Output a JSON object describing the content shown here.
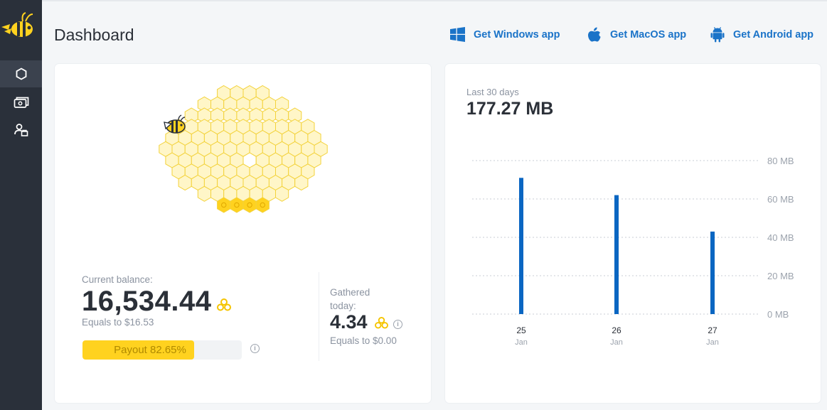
{
  "page": {
    "title": "Dashboard"
  },
  "sidebar": {
    "items": [
      {
        "name": "dashboard",
        "icon": "hexagon-icon",
        "active": true
      },
      {
        "name": "wallet",
        "icon": "wallet-icon",
        "active": false
      },
      {
        "name": "referrals",
        "icon": "users-icon",
        "active": false
      }
    ]
  },
  "header": {
    "apps": [
      {
        "label": "Get Windows app",
        "icon": "windows-icon"
      },
      {
        "label": "Get MacOS app",
        "icon": "apple-icon"
      },
      {
        "label": "Get Android app",
        "icon": "android-icon"
      }
    ]
  },
  "balance": {
    "label": "Current balance:",
    "value": "16,534.44",
    "equals": "Equals to $16.53",
    "payout_text": "Payout 82.65%",
    "payout_percent": 82.65
  },
  "gathered": {
    "label_line1": "Gathered",
    "label_line2": "today:",
    "value": "4.34",
    "equals": "Equals to $0.00"
  },
  "usage": {
    "label": "Last 30 days",
    "value": "177.27 MB"
  },
  "colors": {
    "accent": "#1a73c8",
    "honey": "#ffd21f",
    "bar": "#0a66c2"
  },
  "chart_data": {
    "type": "bar",
    "categories": [
      "25",
      "26",
      "27"
    ],
    "category_sub": [
      "Jan",
      "Jan",
      "Jan"
    ],
    "values": [
      71,
      62,
      43
    ],
    "ylim": [
      0,
      80
    ],
    "yticks": [
      "0 MB",
      "20 MB",
      "40 MB",
      "60 MB",
      "80 MB"
    ],
    "ytick_values": [
      0,
      20,
      40,
      60,
      80
    ],
    "grid": true,
    "axis_side": "right"
  }
}
